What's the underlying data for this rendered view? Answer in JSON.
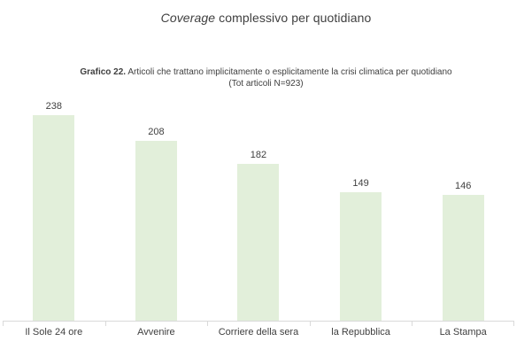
{
  "title": {
    "italic_part": "Coverage",
    "regular_part": " complessivo per quotidiano"
  },
  "subtitle": {
    "bold_part": "Grafico 22.",
    "line1_rest": " Articoli che trattano implicitamente o esplicitamente la crisi climatica per quotidiano",
    "line2": "(Tot articoli N=923)"
  },
  "chart_data": {
    "type": "bar",
    "title": "Coverage complessivo per quotidiano",
    "subtitle": "Grafico 22. Articoli che trattano implicitamente o esplicitamente la crisi climatica per quotidiano (Tot articoli N=923)",
    "categories": [
      "Il Sole 24 ore",
      "Avvenire",
      "Corriere della sera",
      "la Repubblica",
      "La Stampa"
    ],
    "values": [
      238,
      208,
      182,
      149,
      146
    ],
    "xlabel": "",
    "ylabel": "",
    "ylim": [
      0,
      238
    ],
    "grid": false,
    "legend": false,
    "data_labels": true,
    "colors": {
      "bar_fill": "#e2efda",
      "axis_line": "#d9d9d9",
      "text": "#404040",
      "title_text": "#3f3f3f",
      "background": "#ffffff"
    }
  }
}
